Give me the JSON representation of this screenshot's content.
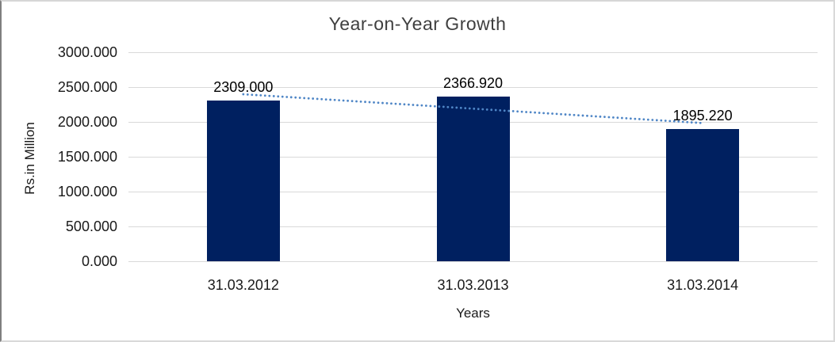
{
  "chart_data": {
    "type": "bar",
    "title": "Year-on-Year Growth",
    "xlabel": "Years",
    "ylabel": "Rs.in Million",
    "categories": [
      "31.03.2012",
      "31.03.2013",
      "31.03.2014"
    ],
    "values": [
      2309.0,
      2366.92,
      1895.22
    ],
    "data_labels": [
      "2309.000",
      "2366.920",
      "1895.220"
    ],
    "ylim": [
      0,
      3000
    ],
    "ytick_step": 500,
    "ytick_labels": [
      "0.000",
      "500.000",
      "1000.000",
      "1500.000",
      "2000.000",
      "2500.000",
      "3000.000"
    ],
    "grid": true,
    "legend_position": "none",
    "trendline": {
      "type": "linear",
      "style": "dotted",
      "color": "#4f86c6"
    },
    "colors": {
      "bar": "#002060",
      "gridline": "#d9d9d9",
      "trendline": "#4f86c6",
      "text": "#1a1a1a",
      "background": "#ffffff"
    }
  }
}
